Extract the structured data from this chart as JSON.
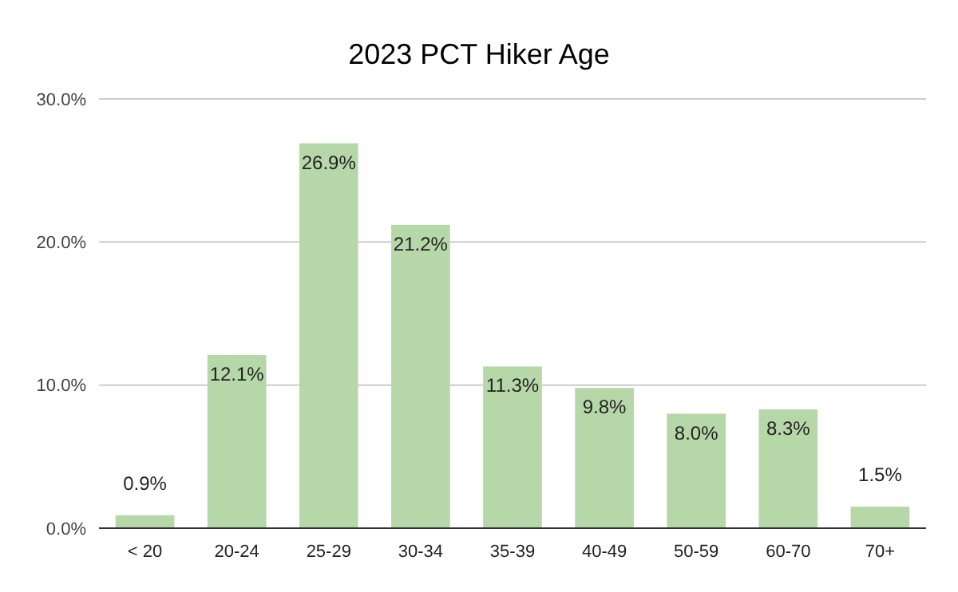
{
  "chart_data": {
    "type": "bar",
    "title": "2023 PCT Hiker Age",
    "categories": [
      "< 20",
      "20-24",
      "25-29",
      "30-34",
      "35-39",
      "40-49",
      "50-59",
      "60-70",
      "70+"
    ],
    "values": [
      0.9,
      12.1,
      26.9,
      21.2,
      11.3,
      9.8,
      8.0,
      8.3,
      1.5
    ],
    "value_labels": [
      "0.9%",
      "12.1%",
      "26.9%",
      "21.2%",
      "11.3%",
      "9.8%",
      "8.0%",
      "8.3%",
      "1.5%"
    ],
    "color": "#b6d7a8",
    "ylim": [
      0,
      30
    ],
    "yticks": [
      {
        "value": 0,
        "label": "0.0%"
      },
      {
        "value": 10,
        "label": "10.0%"
      },
      {
        "value": 20,
        "label": "20.0%"
      },
      {
        "value": 30,
        "label": "30.0%"
      }
    ],
    "grid": "y"
  }
}
